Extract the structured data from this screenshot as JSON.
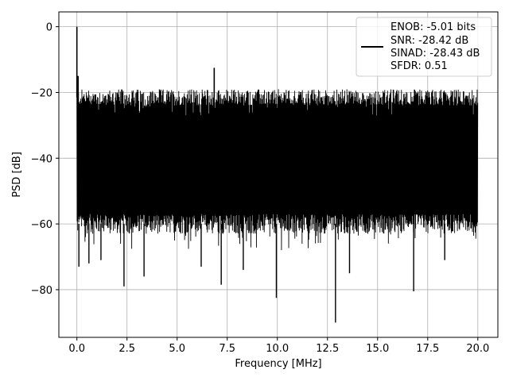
{
  "chart_data": {
    "type": "line",
    "title": "",
    "xlabel": "Frequency [MHz]",
    "ylabel": "PSD [dB]",
    "xlim": [
      -0.9,
      21.0
    ],
    "ylim": [
      -94.5,
      4.5
    ],
    "x_ticks": [
      0.0,
      2.5,
      5.0,
      7.5,
      10.0,
      12.5,
      15.0,
      17.5,
      20.0
    ],
    "x_tick_labels": [
      "0.0",
      "2.5",
      "5.0",
      "7.5",
      "10.0",
      "12.5",
      "15.0",
      "17.5",
      "20.0"
    ],
    "y_ticks": [
      0,
      -20,
      -40,
      -60,
      -80
    ],
    "y_tick_labels": [
      "0",
      "−20",
      "−40",
      "−60",
      "−80"
    ],
    "grid": true,
    "legend_placement": "upper right",
    "legend_entries": [
      "ENOB: -5.01 bits",
      "SNR: -28.42 dB",
      "SINAD: -28.43 dB",
      "SFDR: 0.51"
    ],
    "series": [
      {
        "color": "#000000",
        "noise_floor": {
          "x_range": [
            0.0,
            20.0
          ],
          "upper_envelope_db": -21.5,
          "lower_envelope_db": -60.0
        },
        "peaks": [
          {
            "x": 0.0,
            "y": 0.0
          },
          {
            "x": 0.06,
            "y": -15.0
          },
          {
            "x": 6.85,
            "y": -12.5
          }
        ],
        "dips": [
          {
            "x": 0.1,
            "y": -73.0
          },
          {
            "x": 0.6,
            "y": -72.0
          },
          {
            "x": 1.2,
            "y": -71.0
          },
          {
            "x": 2.35,
            "y": -79.0
          },
          {
            "x": 3.35,
            "y": -76.0
          },
          {
            "x": 6.2,
            "y": -73.0
          },
          {
            "x": 7.2,
            "y": -78.5
          },
          {
            "x": 8.3,
            "y": -74.0
          },
          {
            "x": 9.95,
            "y": -82.5
          },
          {
            "x": 12.9,
            "y": -90.0
          },
          {
            "x": 13.6,
            "y": -75.0
          },
          {
            "x": 16.8,
            "y": -80.5
          },
          {
            "x": 18.35,
            "y": -71.0
          }
        ]
      }
    ]
  }
}
